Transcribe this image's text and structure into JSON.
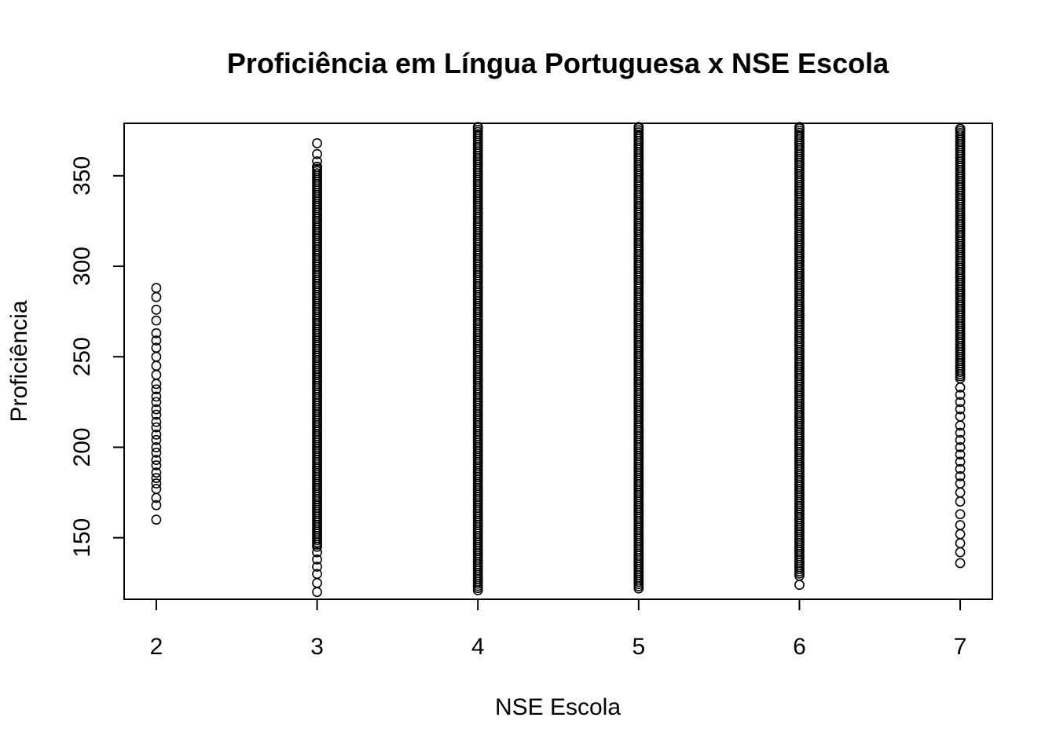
{
  "chart_data": {
    "type": "scatter",
    "title": "Proficiência em Língua Portuguesa x NSE Escola",
    "xlabel": "NSE Escola",
    "ylabel": "Proficiência",
    "xlim": [
      1.8,
      7.2
    ],
    "ylim": [
      116,
      379
    ],
    "x_ticks": [
      2,
      3,
      4,
      5,
      6,
      7
    ],
    "x_tick_labels": [
      "2",
      "3",
      "4",
      "5",
      "6",
      "7"
    ],
    "y_ticks": [
      150,
      200,
      250,
      300,
      350
    ],
    "y_tick_labels": [
      "150",
      "200",
      "250",
      "300",
      "350"
    ],
    "grid": false,
    "series": [
      {
        "x": 2,
        "values": [
          160,
          168,
          172,
          177,
          180,
          183,
          186,
          190,
          193,
          197,
          200,
          204,
          207,
          211,
          214,
          218,
          221,
          225,
          228,
          232,
          235,
          240,
          245,
          250,
          255,
          259,
          263,
          270,
          276,
          283,
          288
        ]
      },
      {
        "x": 3,
        "range": [
          145,
          355
        ],
        "outliers": [
          120,
          125,
          130,
          134,
          138,
          142,
          358,
          362,
          368
        ]
      },
      {
        "x": 4,
        "range": [
          121,
          377
        ],
        "outliers": []
      },
      {
        "x": 5,
        "range": [
          122,
          377
        ],
        "outliers": []
      },
      {
        "x": 6,
        "range": [
          129,
          377
        ],
        "outliers": [
          124
        ]
      },
      {
        "x": 7,
        "range": [
          238,
          376
        ],
        "outliers": [
          136,
          142,
          147,
          152,
          157,
          163,
          170,
          175,
          180,
          184,
          188,
          192,
          196,
          200,
          204,
          208,
          212,
          217,
          221,
          225,
          229,
          233
        ]
      }
    ]
  }
}
